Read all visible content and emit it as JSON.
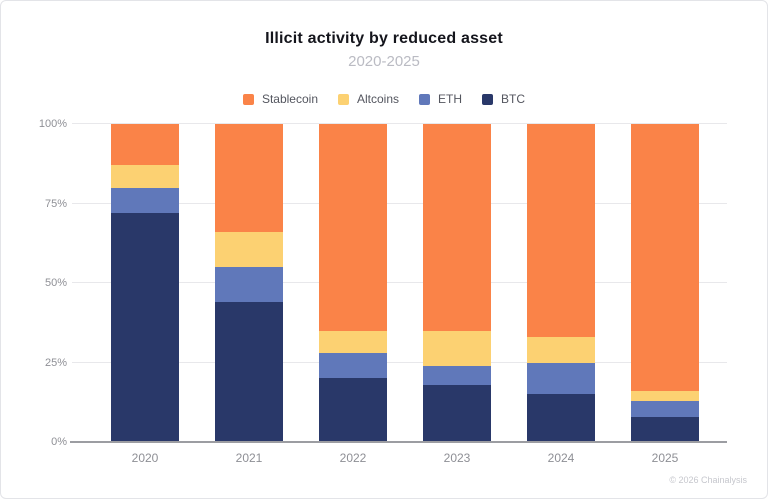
{
  "header": {
    "title": "Illicit activity by reduced asset",
    "subtitle": "2020-2025"
  },
  "legend": [
    {
      "label": "Stablecoin",
      "color": "#FA8348"
    },
    {
      "label": "Altcoins",
      "color": "#FCD172"
    },
    {
      "label": "ETH",
      "color": "#6078BA"
    },
    {
      "label": "BTC",
      "color": "#293869"
    }
  ],
  "chart_data": {
    "type": "bar",
    "stacked": true,
    "unit": "percent",
    "title": "Illicit activity by reduced asset",
    "subtitle": "2020-2025",
    "legend_position": "top",
    "grid": true,
    "categories": [
      "2020",
      "2021",
      "2022",
      "2023",
      "2024",
      "2025"
    ],
    "series": [
      {
        "name": "BTC",
        "color": "#293869",
        "values": [
          72,
          44,
          20,
          18,
          15,
          8
        ]
      },
      {
        "name": "ETH",
        "color": "#6078BA",
        "values": [
          8,
          11,
          8,
          6,
          10,
          5
        ]
      },
      {
        "name": "Altcoins",
        "color": "#FCD172",
        "values": [
          7,
          11,
          7,
          11,
          8,
          3
        ]
      },
      {
        "name": "Stablecoin",
        "color": "#FA8348",
        "values": [
          13,
          34,
          65,
          65,
          67,
          84
        ]
      }
    ],
    "y_axis": {
      "min": 0,
      "max": 100,
      "ticks": [
        0,
        25,
        50,
        75,
        100
      ],
      "tick_labels": [
        "0%",
        "25%",
        "50%",
        "75%",
        "100%"
      ]
    }
  },
  "footer": {
    "credit": "© 2026 Chainalysis"
  }
}
